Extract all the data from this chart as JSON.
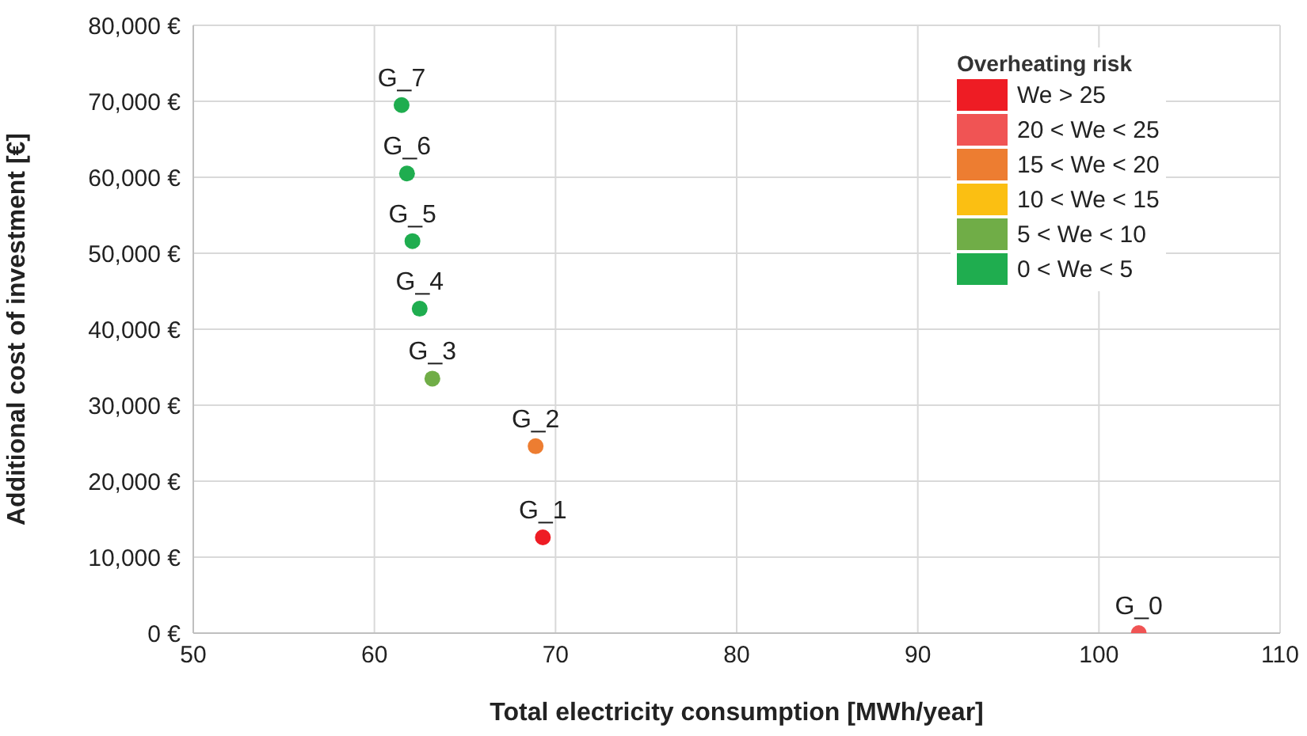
{
  "chart_data": {
    "type": "scatter",
    "xlabel": "Total electricity  consumption  [MWh/year]",
    "ylabel": "Additional  cost of investment [€]",
    "legend_title": "Overheating risk",
    "xlim": [
      50,
      110
    ],
    "xticks": [
      50,
      60,
      70,
      80,
      90,
      100,
      110
    ],
    "ylim": [
      0,
      80000
    ],
    "yticks": [
      {
        "value": 0,
        "label": "0 €"
      },
      {
        "value": 10000,
        "label": "10,000 €"
      },
      {
        "value": 20000,
        "label": "20,000 €"
      },
      {
        "value": 30000,
        "label": "30,000 €"
      },
      {
        "value": 40000,
        "label": "40,000 €"
      },
      {
        "value": 50000,
        "label": "50,000 €"
      },
      {
        "value": 60000,
        "label": "60,000 €"
      },
      {
        "value": 70000,
        "label": "70,000 €"
      },
      {
        "value": 80000,
        "label": "80,000 €"
      }
    ],
    "grid": true,
    "legend": "top right",
    "marker": "circle",
    "series": [
      {
        "name": "We > 25",
        "color": "#ee1c24",
        "x": [
          69.3
        ],
        "values": [
          12600
        ]
      },
      {
        "name": "20 < We < 25",
        "color": "#f05454",
        "x": [
          102.2
        ],
        "values": [
          0
        ]
      },
      {
        "name": "15 < We < 20",
        "color": "#ed7d31",
        "x": [
          68.9
        ],
        "values": [
          24600
        ]
      },
      {
        "name": "10 < We < 15",
        "color": "#fbbf12"
      },
      {
        "name": "5 < We < 10",
        "color": "#70ad47",
        "x": [
          63.2
        ],
        "values": [
          33500
        ]
      },
      {
        "name": "0 < We < 5",
        "color": "#1fad4f",
        "x": [
          62.5,
          62.1,
          61.8,
          61.5
        ],
        "values": [
          42700,
          51600,
          60500,
          69500
        ]
      }
    ],
    "annotations": [
      {
        "text": "G_0",
        "x": 102.2,
        "y": 0
      },
      {
        "text": "G_1",
        "x": 69.3,
        "y": 12600
      },
      {
        "text": "G_2",
        "x": 68.9,
        "y": 24600
      },
      {
        "text": "G_3",
        "x": 63.2,
        "y": 33500
      },
      {
        "text": "G_4",
        "x": 62.5,
        "y": 42700
      },
      {
        "text": "G_5",
        "x": 62.1,
        "y": 51600
      },
      {
        "text": "G_6",
        "x": 61.8,
        "y": 60500
      },
      {
        "text": "G_7",
        "x": 61.5,
        "y": 69500
      }
    ]
  }
}
